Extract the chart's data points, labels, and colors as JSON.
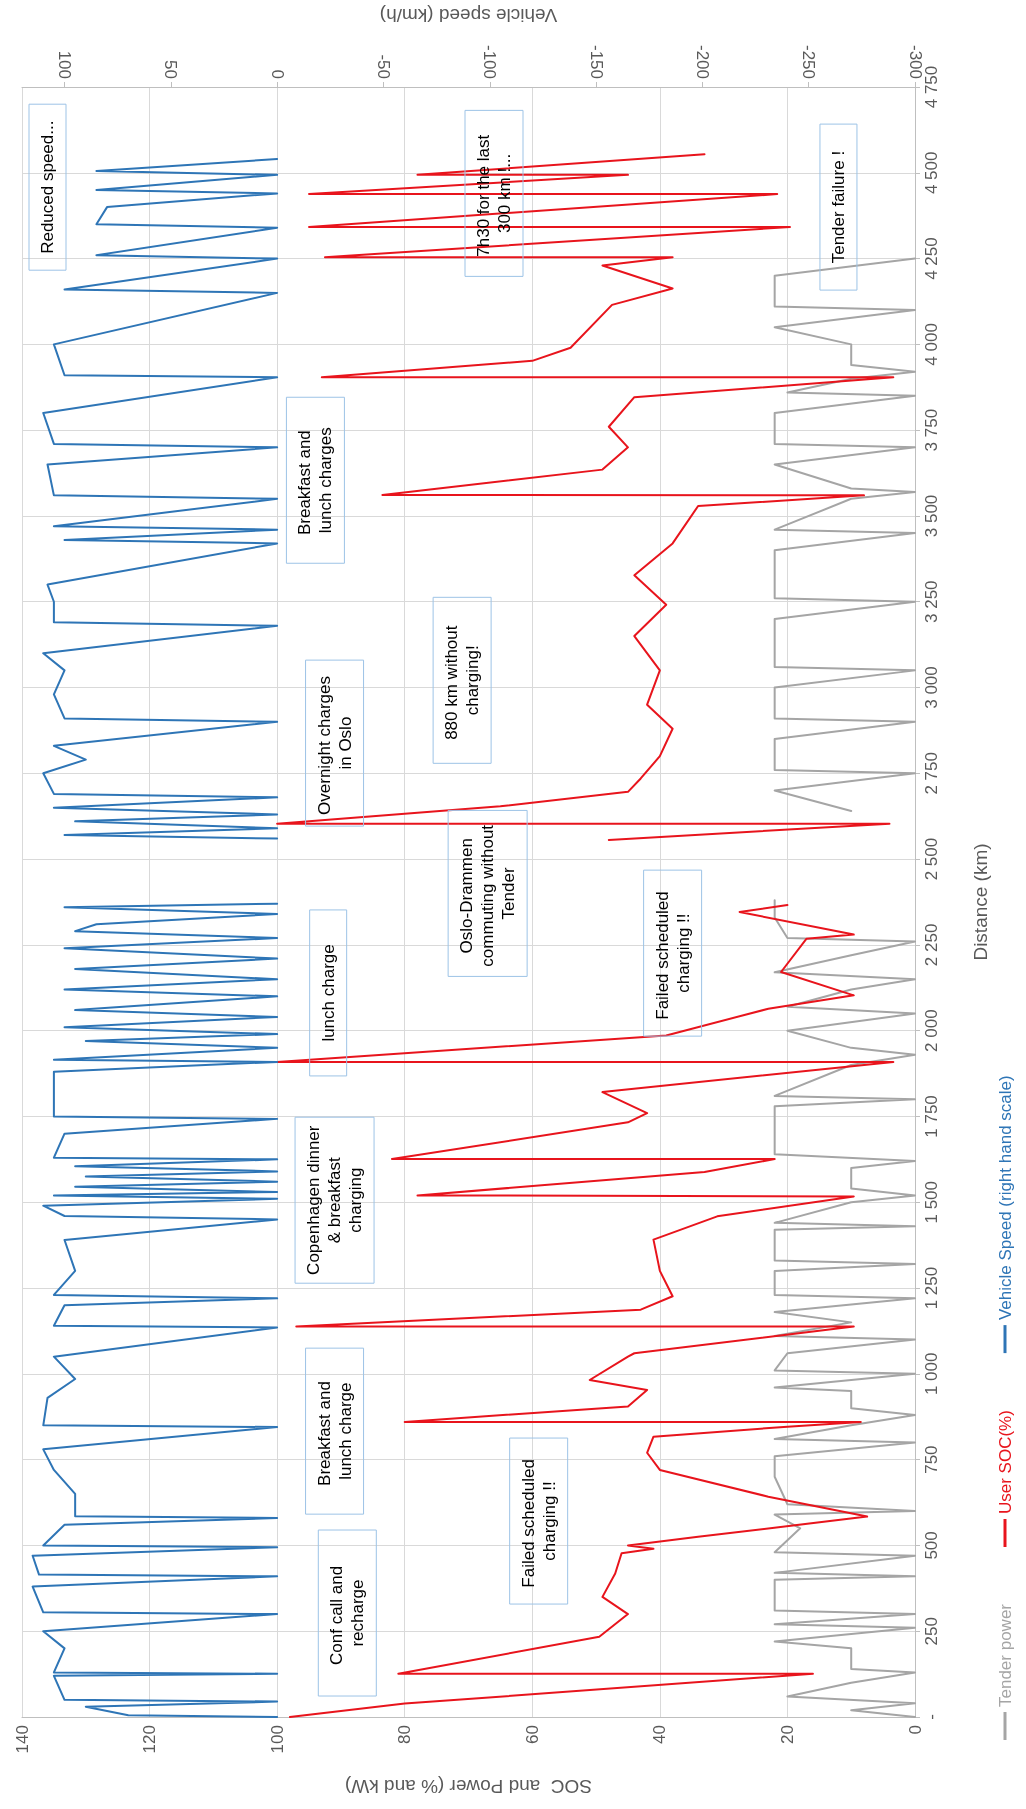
{
  "chart_data": {
    "type": "line",
    "xlabel": "SOC  and Power (% and kW)",
    "ylabel": "Distance (km)",
    "x2label": "Vehicle speed (km/h)",
    "xlim": [
      140,
      0
    ],
    "xticks": [
      0,
      20,
      40,
      60,
      80,
      100,
      120,
      140
    ],
    "x2lim": [
      120,
      -300
    ],
    "x2ticks": [
      -300,
      -250,
      -200,
      -150,
      -100,
      -50,
      0,
      50,
      100
    ],
    "ylim": [
      0,
      4750
    ],
    "yticks": [
      {
        "value": 0,
        "label": "-"
      },
      250,
      500,
      750,
      {
        "value": 1000,
        "label": "1 000"
      },
      {
        "value": 1250,
        "label": "1 250"
      },
      {
        "value": 1500,
        "label": "1 500"
      },
      {
        "value": 1750,
        "label": "1 750"
      },
      {
        "value": 2000,
        "label": "2 000"
      },
      {
        "value": 2250,
        "label": "2 250"
      },
      {
        "value": 2500,
        "label": "2 500"
      },
      {
        "value": 2750,
        "label": "2 750"
      },
      {
        "value": 3000,
        "label": "3 000"
      },
      {
        "value": 3250,
        "label": "3 250"
      },
      {
        "value": 3500,
        "label": "3 500"
      },
      {
        "value": 3750,
        "label": "3 750"
      },
      {
        "value": 4000,
        "label": "4 000"
      },
      {
        "value": 4250,
        "label": "4 250"
      },
      {
        "value": 4500,
        "label": "4 500"
      },
      {
        "value": 4750,
        "label": "4 750"
      }
    ],
    "grid": true,
    "legend": "right",
    "marker": "none",
    "line_style": "solid",
    "series": [
      {
        "name": "Tender power",
        "color": "#a5a5a5",
        "values": [
          0,
          20,
          40,
          60,
          100,
          130,
          140,
          200,
          220,
          260,
          270,
          300,
          310,
          400,
          410,
          420,
          470,
          480,
          550,
          590,
          600,
          620,
          700,
          760,
          800,
          810,
          850,
          880,
          900,
          950,
          960,
          1000,
          1010,
          1060,
          1100,
          1110,
          1150,
          1180,
          1220,
          1230,
          1300,
          1320,
          1330,
          1420,
          1430,
          1440,
          1500,
          1520,
          1540,
          1600,
          1620,
          1640,
          1720,
          1780,
          1800,
          1810,
          1900,
          1930,
          1950,
          2000,
          2050,
          2070,
          2120,
          2150,
          2170,
          2220,
          2260,
          2270,
          2330,
          2380,
          null,
          2640,
          2700,
          2750,
          2760,
          2850,
          2900,
          2910,
          3000,
          3050,
          3060,
          3200,
          3250,
          3260,
          3400,
          3450,
          3460,
          3550,
          3570,
          3580,
          3650,
          3700,
          3710,
          3800,
          3850,
          3860,
          3900,
          3920,
          3940,
          4000,
          4050,
          4100,
          4110,
          4200,
          4250
        ],
        "x": [
          0,
          10,
          0,
          20,
          10,
          0,
          10,
          10,
          22,
          0,
          22,
          0,
          22,
          22,
          0,
          22,
          0,
          22,
          18,
          22,
          0,
          20,
          22,
          22,
          0,
          22,
          10,
          0,
          10,
          10,
          22,
          0,
          22,
          20,
          0,
          22,
          10,
          22,
          0,
          22,
          22,
          0,
          22,
          22,
          0,
          22,
          10,
          0,
          10,
          10,
          0,
          22,
          22,
          22,
          0,
          22,
          10,
          0,
          10,
          20,
          0,
          20,
          10,
          0,
          22,
          10,
          0,
          20,
          22,
          22,
          null,
          10,
          22,
          0,
          22,
          22,
          0,
          22,
          22,
          0,
          22,
          22,
          0,
          22,
          22,
          0,
          22,
          10,
          0,
          10,
          22,
          0,
          22,
          22,
          0,
          20,
          10,
          0,
          10,
          10,
          22,
          0,
          22,
          22,
          0
        ]
      },
      {
        "name": "User SOC(%)",
        "color": "#e8141c",
        "values": [
          0,
          39,
          126,
          126,
          234,
          300,
          350,
          418,
          477,
          490,
          500,
          525,
          584,
          642,
          720,
          770,
          817,
          846,
          860,
          860,
          905,
          953,
          982,
          1050,
          1060,
          1138,
          1138,
          1187,
          1226,
          1300,
          1391,
          1459,
          1517,
          1520,
          1588,
          1626,
          1626,
          1733,
          1760,
          1821,
          1909,
          1909,
          1986,
          2064,
          2103,
          2171,
          2268,
          2280,
          2346,
          2366,
          null,
          2556,
          2603,
          2603,
          2654,
          2696,
          2735,
          2800,
          2880,
          2950,
          3050,
          3150,
          3241,
          3327,
          3420,
          3529,
          3560,
          3561,
          3635,
          3700,
          3760,
          3846,
          3904,
          3904,
          3952,
          3990,
          4115,
          4163,
          4230,
          4254,
          4254,
          4342,
          4342,
          4438,
          4438,
          4494,
          4494,
          4554
        ],
        "x": [
          98,
          80,
          16,
          81,
          49.5,
          45,
          49,
          47,
          46,
          41,
          45,
          34,
          7.5,
          23,
          40,
          42,
          41,
          20,
          8.5,
          80,
          45,
          42,
          51,
          45,
          44,
          9.6,
          97,
          43,
          38,
          40,
          41,
          31,
          9.6,
          78,
          33,
          22,
          82,
          45,
          42,
          49,
          3.4,
          100,
          39,
          23,
          9.6,
          21,
          17,
          9.6,
          27.5,
          20,
          null,
          48,
          4,
          100,
          65,
          45,
          43,
          40,
          38,
          42,
          40,
          44,
          39,
          44,
          38,
          34,
          8,
          83.5,
          49,
          45,
          48,
          44,
          3.4,
          93,
          60,
          54,
          47.5,
          38,
          49,
          38,
          92.5,
          19.6,
          95,
          21.6,
          95,
          45,
          78,
          33
        ]
      },
      {
        "name": "Vehicle Speed (right hand scale)",
        "color": "#2e75b6",
        "axis": "x2",
        "values": [
          0,
          5,
          30,
          45,
          50,
          120,
          126,
          130,
          200,
          250,
          300,
          305,
          380,
          410,
          415,
          470,
          495,
          500,
          560,
          580,
          585,
          650,
          720,
          780,
          845,
          850,
          930,
          985,
          1050,
          1135,
          1140,
          1200,
          1220,
          1230,
          1300,
          1390,
          1450,
          1460,
          1490,
          1510,
          1520,
          1530,
          1545,
          1560,
          1575,
          1590,
          1605,
          1625,
          1630,
          1700,
          1743,
          1750,
          1880,
          1909,
          1915,
          1950,
          1970,
          1990,
          2010,
          2040,
          2060,
          2100,
          2120,
          2150,
          2180,
          2210,
          2240,
          2270,
          2290,
          2310,
          2340,
          2360,
          2370,
          null,
          2560,
          2570,
          2590,
          2610,
          2630,
          2650,
          2680,
          2690,
          2750,
          2790,
          2830,
          2900,
          2910,
          2980,
          3050,
          3100,
          3180,
          3190,
          3250,
          3300,
          3420,
          3430,
          3460,
          3470,
          3550,
          3560,
          3650,
          3700,
          3710,
          3800,
          3904,
          3910,
          4000,
          4150,
          4160,
          4250,
          4260,
          4340,
          4350,
          4400,
          4440,
          4450,
          4494,
          4505,
          4540
        ],
        "x": [
          0,
          70,
          90,
          0,
          100,
          105,
          0,
          105,
          100,
          110,
          0,
          110,
          115,
          0,
          112,
          115,
          0,
          110,
          100,
          0,
          95,
          95,
          105,
          110,
          0,
          110,
          108,
          95,
          105,
          0,
          105,
          100,
          0,
          105,
          95,
          100,
          0,
          100,
          110,
          0,
          105,
          0,
          95,
          0,
          90,
          0,
          95,
          0,
          105,
          100,
          0,
          105,
          105,
          0,
          105,
          0,
          90,
          0,
          100,
          0,
          95,
          0,
          100,
          0,
          95,
          0,
          100,
          0,
          95,
          85,
          0,
          100,
          0,
          null,
          0,
          100,
          0,
          95,
          0,
          105,
          0,
          105,
          110,
          90,
          105,
          0,
          100,
          105,
          100,
          110,
          0,
          105,
          105,
          108,
          0,
          100,
          0,
          105,
          0,
          105,
          108,
          0,
          105,
          110,
          0,
          100,
          105,
          0,
          100,
          0,
          85,
          0,
          85,
          80,
          0,
          85,
          0,
          85,
          0
        ]
      }
    ],
    "annotations": [
      "Conf call and recharge",
      "Failed scheduled charging !!",
      "Breakfast and lunch charge",
      "Copenhagen dinner & breakfast charging",
      "lunch charge",
      "Failed scheduled charging !!",
      "Oslo-Drammen commuting without Tender",
      "Overnight charges in Oslo",
      "880 km without charging!",
      "Breakfast and lunch charges",
      "Tender failure !",
      "7h30 for the last 300 km !...",
      "Reduced speed..."
    ]
  }
}
